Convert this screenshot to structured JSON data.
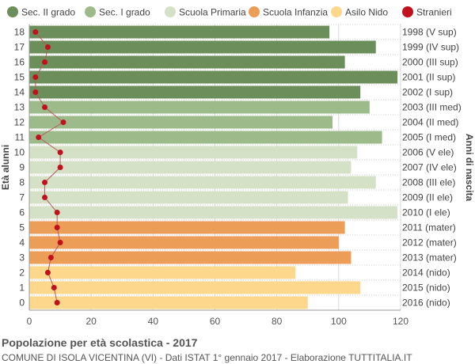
{
  "chart_data": {
    "type": "bar",
    "orientation": "horizontal",
    "title": "Popolazione per età scolastica - 2017",
    "subtitle": "COMUNE DI ISOLA VICENTINA (VI) - Dati ISTAT 1° gennaio 2017 - Elaborazione TUTTITALIA.IT",
    "ylabel": "Età alunni",
    "ylabel_right": "Anni di nascita",
    "xlim": [
      0,
      120
    ],
    "xticks": [
      0,
      20,
      40,
      60,
      80,
      100,
      120
    ],
    "grid": true,
    "legend_position": "top",
    "legend": [
      {
        "name": "Sec. II grado",
        "color": "#6b8e5a"
      },
      {
        "name": "Sec. I grado",
        "color": "#9cba8a"
      },
      {
        "name": "Scuola Primaria",
        "color": "#d5e1c6"
      },
      {
        "name": "Scuola Infanzia",
        "color": "#ec9e58"
      },
      {
        "name": "Asilo Nido",
        "color": "#fdd78c"
      },
      {
        "name": "Stranieri",
        "color": "#c0121c"
      }
    ],
    "rows": [
      {
        "age": "18",
        "year": "1998 (V sup)",
        "value": 97,
        "stranieri": 2,
        "group": 0
      },
      {
        "age": "17",
        "year": "1999 (IV sup)",
        "value": 112,
        "stranieri": 6,
        "group": 0
      },
      {
        "age": "16",
        "year": "2000 (III sup)",
        "value": 102,
        "stranieri": 5,
        "group": 0
      },
      {
        "age": "15",
        "year": "2001 (II sup)",
        "value": 119,
        "stranieri": 2,
        "group": 0
      },
      {
        "age": "14",
        "year": "2002 (I sup)",
        "value": 107,
        "stranieri": 2,
        "group": 0
      },
      {
        "age": "13",
        "year": "2003 (III med)",
        "value": 110,
        "stranieri": 5,
        "group": 1
      },
      {
        "age": "12",
        "year": "2004 (II med)",
        "value": 98,
        "stranieri": 11,
        "group": 1
      },
      {
        "age": "11",
        "year": "2005 (I med)",
        "value": 114,
        "stranieri": 3,
        "group": 1
      },
      {
        "age": "10",
        "year": "2006 (V ele)",
        "value": 106,
        "stranieri": 10,
        "group": 2
      },
      {
        "age": "9",
        "year": "2007 (IV ele)",
        "value": 104,
        "stranieri": 10,
        "group": 2
      },
      {
        "age": "8",
        "year": "2008 (III ele)",
        "value": 112,
        "stranieri": 5,
        "group": 2
      },
      {
        "age": "7",
        "year": "2009 (II ele)",
        "value": 103,
        "stranieri": 5,
        "group": 2
      },
      {
        "age": "6",
        "year": "2010 (I ele)",
        "value": 119,
        "stranieri": 9,
        "group": 2
      },
      {
        "age": "5",
        "year": "2011 (mater)",
        "value": 102,
        "stranieri": 9,
        "group": 3
      },
      {
        "age": "4",
        "year": "2012 (mater)",
        "value": 100,
        "stranieri": 10,
        "group": 3
      },
      {
        "age": "3",
        "year": "2013 (mater)",
        "value": 104,
        "stranieri": 7,
        "group": 3
      },
      {
        "age": "2",
        "year": "2014 (nido)",
        "value": 86,
        "stranieri": 6,
        "group": 4
      },
      {
        "age": "1",
        "year": "2015 (nido)",
        "value": 107,
        "stranieri": 8,
        "group": 4
      },
      {
        "age": "0",
        "year": "2016 (nido)",
        "value": 90,
        "stranieri": 9,
        "group": 4
      }
    ]
  }
}
